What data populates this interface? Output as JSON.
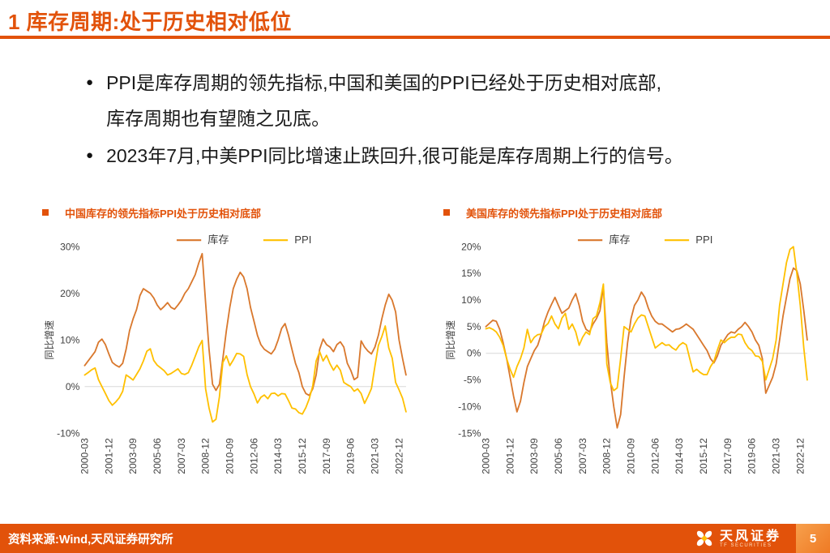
{
  "slide": {
    "title": "1 库存周期:处于历史相对低位",
    "bullets": [
      {
        "lines": [
          "PPI是库存周期的领先指标,中国和美国的PPI已经处于历史相对底部,",
          "库存周期也有望随之见底。"
        ]
      },
      {
        "lines": [
          "2023年7月,中美PPI同比增速止跌回升,很可能是库存周期上行的信号。"
        ]
      }
    ],
    "footer": {
      "source": "资料来源:Wind,天风证券研究所",
      "logo_cn": "天风证券",
      "logo_en": "TF SECURITIES",
      "page_number": "5"
    },
    "colors": {
      "accent": "#E2520A",
      "inventory_line": "#D9782D",
      "ppi_line": "#FFC000"
    }
  },
  "chart_data": [
    {
      "type": "line",
      "title": "中国库存的领先指标PPI处于历史相对底部",
      "ylabel": "同比增速",
      "ylim": [
        -10,
        30
      ],
      "yticks": [
        30,
        20,
        10,
        0,
        -10
      ],
      "grid": false,
      "legend_position": "top-center",
      "x_start": "2000-03",
      "x_freq": "quarterly",
      "x_tick_every": 7,
      "x_tick_labels": [
        "2000-03",
        "2001-12",
        "2003-09",
        "2005-06",
        "2007-03",
        "2008-12",
        "2010-09",
        "2012-06",
        "2014-03",
        "2015-12",
        "2017-09",
        "2019-06",
        "2021-03",
        "2022-12"
      ],
      "series": [
        {
          "name": "库存",
          "color": "#D9782D",
          "values": [
            4.5,
            5.5,
            6.5,
            7.5,
            9.5,
            10.2,
            9,
            7,
            5.2,
            4.6,
            4.2,
            5,
            8,
            12,
            14.5,
            16.5,
            19.5,
            21,
            20.5,
            20,
            19,
            17.5,
            16.5,
            17.2,
            18,
            17,
            16.6,
            17.5,
            18.5,
            20,
            21,
            22.5,
            24,
            26.5,
            28.5,
            18,
            8,
            0.5,
            -0.8,
            0.5,
            6,
            12,
            17,
            21,
            23,
            24.5,
            23.5,
            21,
            17,
            14,
            11,
            9,
            8,
            7.5,
            7,
            8,
            10,
            12.5,
            13.5,
            11,
            8,
            5,
            3,
            0,
            -1.5,
            -1.9,
            -0.5,
            2.5,
            8,
            10.2,
            9,
            8.5,
            7.5,
            9,
            9.6,
            8.5,
            5,
            3.5,
            1.5,
            2,
            9.8,
            8.5,
            7.6,
            7,
            8.5,
            11,
            14.5,
            17.5,
            19.8,
            18.5,
            16,
            10,
            6,
            2.5
          ]
        },
        {
          "name": "PPI",
          "color": "#FFC000",
          "values": [
            2.5,
            3,
            3.6,
            4,
            1.5,
            0,
            -1.5,
            -3,
            -4,
            -3.3,
            -2.4,
            -1,
            2.5,
            2,
            1.4,
            2.6,
            3.8,
            5.5,
            7.6,
            8.1,
            5.6,
            4.6,
            4,
            3.4,
            2.5,
            2.8,
            3.3,
            3.8,
            2.8,
            2.6,
            3,
            4.6,
            6.5,
            8.5,
            9.9,
            -0.5,
            -4.6,
            -7.6,
            -7,
            -2.2,
            5.2,
            6.6,
            4.5,
            5.7,
            7.1,
            7,
            6.5,
            2.6,
            0,
            -1.6,
            -3.5,
            -2.3,
            -1.8,
            -2.6,
            -1.5,
            -1.4,
            -2,
            -1.5,
            -1.6,
            -3,
            -4.6,
            -4.8,
            -5.6,
            -5.9,
            -4.5,
            -2.6,
            0.1,
            5.5,
            7.5,
            5.5,
            6.7,
            4.9,
            3.5,
            4.6,
            3.5,
            0.9,
            0.4,
            0,
            -1,
            -0.5,
            -1.5,
            -3.6,
            -2.1,
            -0.4,
            4.4,
            8.8,
            10.7,
            13,
            8.3,
            6.1,
            0.9,
            -0.7,
            -2.5,
            -5.4
          ]
        }
      ]
    },
    {
      "type": "line",
      "title": "美国库存的领先指标PPI处于历史相对底部",
      "ylabel": "同比增速",
      "ylim": [
        -15,
        20
      ],
      "yticks": [
        20,
        15,
        10,
        5,
        0,
        -5,
        -10,
        -15
      ],
      "grid": false,
      "legend_position": "top-center",
      "x_start": "2000-03",
      "x_freq": "quarterly",
      "x_tick_every": 7,
      "x_tick_labels": [
        "2000-03",
        "2001-12",
        "2003-09",
        "2005-06",
        "2007-03",
        "2008-12",
        "2010-09",
        "2012-06",
        "2014-03",
        "2015-12",
        "2017-09",
        "2019-06",
        "2021-03",
        "2022-12"
      ],
      "series": [
        {
          "name": "库存",
          "color": "#D9782D",
          "values": [
            5,
            5.6,
            6.2,
            6,
            4.5,
            2,
            -1,
            -4.5,
            -8,
            -11,
            -9,
            -5.5,
            -2.5,
            -1,
            0.5,
            1.5,
            3.5,
            6,
            7.8,
            9.2,
            10.5,
            9,
            7.5,
            8,
            8.5,
            10,
            11.2,
            9,
            6,
            4.5,
            4,
            5.5,
            6.5,
            8,
            12.5,
            2,
            -5,
            -10,
            -14,
            -11.5,
            -4.5,
            2,
            6.5,
            9,
            10,
            11.5,
            10.5,
            8.5,
            7,
            6,
            5.5,
            5.5,
            5,
            4.5,
            4,
            4.5,
            4.6,
            5,
            5.5,
            5,
            4.5,
            3.5,
            2.5,
            1.5,
            0.5,
            -1,
            -1.8,
            -0.5,
            1.5,
            2.5,
            3.5,
            4,
            3.8,
            4.5,
            5,
            5.8,
            5,
            4,
            2.5,
            1.5,
            -1,
            -7.5,
            -6,
            -4.5,
            -2,
            2.5,
            7,
            10.5,
            14,
            16,
            15.5,
            13,
            8,
            2.5
          ]
        },
        {
          "name": "PPI",
          "color": "#FFC000",
          "values": [
            4.6,
            4.8,
            4.5,
            4,
            3,
            1.5,
            -1,
            -3,
            -4.5,
            -2.5,
            -1,
            1,
            4.5,
            2,
            3,
            3.5,
            3.6,
            5,
            5.6,
            7,
            5.5,
            4.6,
            6.6,
            7.5,
            4.5,
            5.5,
            4,
            1.5,
            3,
            4,
            3.5,
            6.5,
            7,
            9.5,
            13,
            -2,
            -5.5,
            -7,
            -6.5,
            -1,
            5,
            4.5,
            4,
            5.5,
            6.6,
            7.2,
            7,
            5,
            3,
            1,
            1.5,
            2,
            1.5,
            1.6,
            1,
            0.6,
            1.5,
            2,
            1.6,
            -1,
            -3.5,
            -3,
            -3.6,
            -4,
            -4,
            -2.5,
            -1.5,
            0.6,
            2.5,
            2,
            2.6,
            3,
            3,
            3.6,
            3.5,
            2,
            1,
            0.5,
            -0.5,
            -0.6,
            -1.5,
            -5,
            -3,
            -1,
            2.5,
            9,
            13,
            17,
            19.5,
            20,
            15,
            9,
            1,
            -5
          ]
        }
      ]
    }
  ]
}
